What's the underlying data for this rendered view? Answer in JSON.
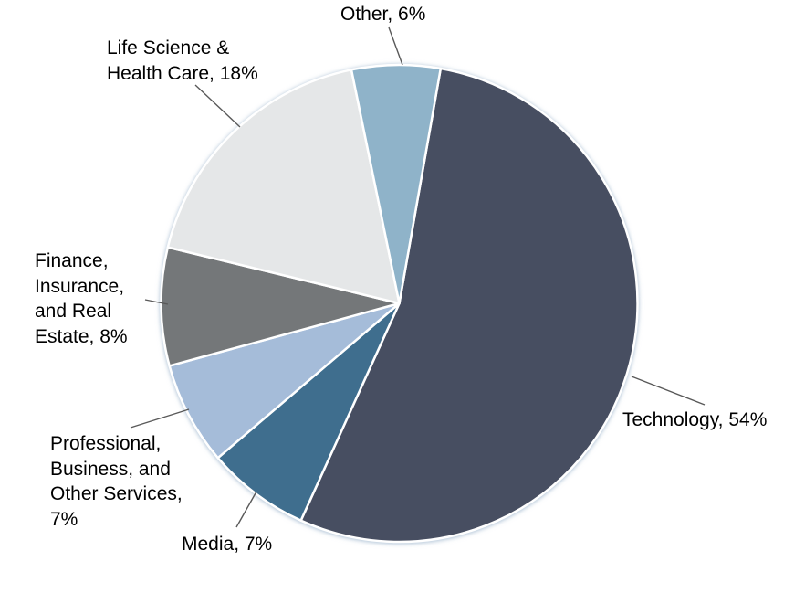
{
  "chart_data": {
    "type": "pie",
    "title": "",
    "legend": "none",
    "labels_position": "outside-with-leader-lines",
    "start_angle_deg": 10,
    "direction": "clockwise",
    "unit": "%",
    "categories": [
      "Technology",
      "Media",
      "Professional, Business, and Other Services",
      "Finance, Insurance, and Real Estate",
      "Life Science & Health Care",
      "Other"
    ],
    "values": [
      54,
      7,
      7,
      8,
      18,
      6
    ],
    "slices": [
      {
        "id": "technology",
        "label": "Technology",
        "value": 54,
        "display": "Technology, 54%",
        "color": "#474E61"
      },
      {
        "id": "media",
        "label": "Media",
        "value": 7,
        "display": "Media, 7%",
        "color": "#3F6E8E"
      },
      {
        "id": "professional-business-other-services",
        "label": "Professional, Business, and Other Services",
        "value": 7,
        "display": "Professional,\nBusiness, and\nOther Services,\n7%",
        "color": "#A5BCD9"
      },
      {
        "id": "finance-insurance-real-estate",
        "label": "Finance, Insurance, and Real Estate",
        "value": 8,
        "display": "Finance,\nInsurance,\nand Real\nEstate, 8%",
        "color": "#747779"
      },
      {
        "id": "life-science-health-care",
        "label": "Life Science & Health Care",
        "value": 18,
        "display": "Life Science &\nHealth Care, 18%",
        "color": "#E5E7E8"
      },
      {
        "id": "other",
        "label": "Other",
        "value": 6,
        "display": "Other, 6%",
        "color": "#8FB3C9"
      }
    ],
    "colors": {
      "slice_border": "#ffffff",
      "leader_line": "#595959",
      "label_text": "#000000"
    }
  }
}
